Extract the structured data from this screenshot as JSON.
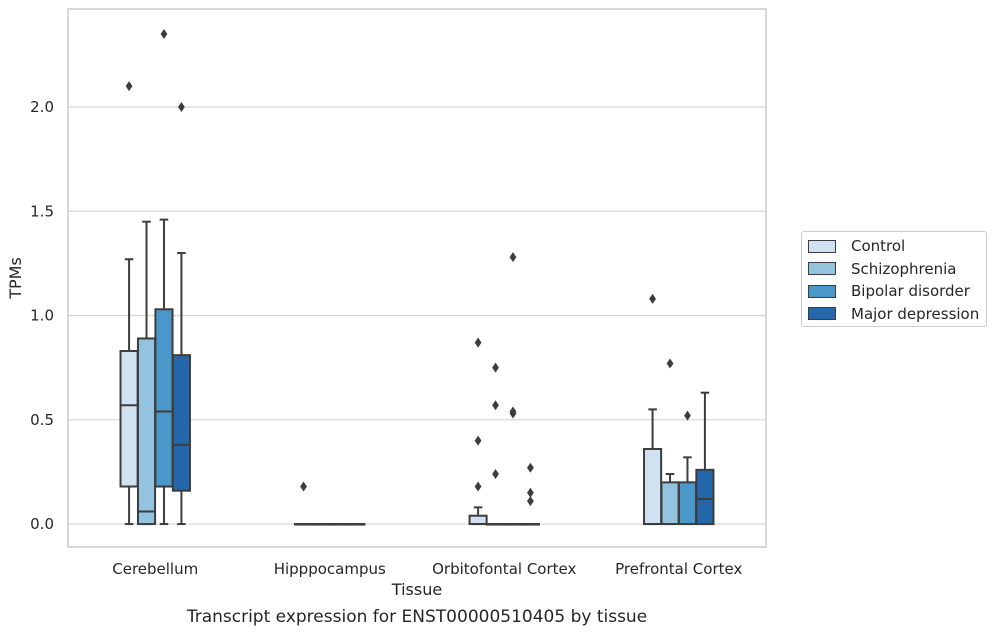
{
  "chart_data": {
    "type": "boxplot",
    "caption": "Transcript expression for ENST00000510405 by tissue",
    "xlabel": "Tissue",
    "ylabel": "TPMs",
    "ylim": [
      -0.11,
      2.47
    ],
    "yticks": [
      "0.0",
      "0.5",
      "1.0",
      "1.5",
      "2.0"
    ],
    "grid": "horizontal",
    "legend_position": "right",
    "categories": [
      "Cerebellum",
      "Hipppocampus",
      "Orbitofontal Cortex",
      "Prefrontal Cortex"
    ],
    "colors": [
      "#d0e1f1",
      "#93c3df",
      "#4a98c9",
      "#2467aa"
    ],
    "series": [
      {
        "name": "Control",
        "boxes": [
          {
            "whislo": 0.0,
            "q1": 0.18,
            "med": 0.57,
            "q3": 0.83,
            "whishi": 1.27,
            "fliers": [
              2.1
            ]
          },
          {
            "whislo": 0.0,
            "q1": 0.0,
            "med": 0.0,
            "q3": 0.0,
            "whishi": 0.0,
            "fliers": [
              0.18
            ]
          },
          {
            "whislo": 0.0,
            "q1": 0.0,
            "med": 0.0,
            "q3": 0.04,
            "whishi": 0.08,
            "fliers": [
              0.18,
              0.4,
              0.87
            ]
          },
          {
            "whislo": 0.0,
            "q1": 0.0,
            "med": 0.0,
            "q3": 0.36,
            "whishi": 0.55,
            "fliers": [
              1.08
            ]
          }
        ]
      },
      {
        "name": "Schizophrenia",
        "boxes": [
          {
            "whislo": 0.0,
            "q1": 0.0,
            "med": 0.06,
            "q3": 0.89,
            "whishi": 1.45,
            "fliers": []
          },
          {
            "whislo": 0.0,
            "q1": 0.0,
            "med": 0.0,
            "q3": 0.0,
            "whishi": 0.0,
            "fliers": []
          },
          {
            "whislo": 0.0,
            "q1": 0.0,
            "med": 0.0,
            "q3": 0.0,
            "whishi": 0.0,
            "fliers": [
              0.24,
              0.57,
              0.75
            ]
          },
          {
            "whislo": 0.0,
            "q1": 0.0,
            "med": 0.0,
            "q3": 0.2,
            "whishi": 0.24,
            "fliers": [
              0.77
            ]
          }
        ]
      },
      {
        "name": "Bipolar disorder",
        "boxes": [
          {
            "whislo": 0.0,
            "q1": 0.18,
            "med": 0.54,
            "q3": 1.03,
            "whishi": 1.46,
            "fliers": [
              2.35
            ]
          },
          {
            "whislo": 0.0,
            "q1": 0.0,
            "med": 0.0,
            "q3": 0.0,
            "whishi": 0.0,
            "fliers": []
          },
          {
            "whislo": 0.0,
            "q1": 0.0,
            "med": 0.0,
            "q3": 0.0,
            "whishi": 0.0,
            "fliers": [
              0.53,
              0.54,
              1.28
            ]
          },
          {
            "whislo": 0.0,
            "q1": 0.0,
            "med": 0.0,
            "q3": 0.2,
            "whishi": 0.32,
            "fliers": [
              0.52
            ]
          }
        ]
      },
      {
        "name": "Major depression",
        "boxes": [
          {
            "whislo": 0.0,
            "q1": 0.16,
            "med": 0.38,
            "q3": 0.81,
            "whishi": 1.3,
            "fliers": [
              2.0
            ]
          },
          {
            "whislo": 0.0,
            "q1": 0.0,
            "med": 0.0,
            "q3": 0.0,
            "whishi": 0.0,
            "fliers": []
          },
          {
            "whislo": 0.0,
            "q1": 0.0,
            "med": 0.0,
            "q3": 0.0,
            "whishi": 0.0,
            "fliers": [
              0.11,
              0.15,
              0.27
            ]
          },
          {
            "whislo": 0.0,
            "q1": 0.0,
            "med": 0.12,
            "q3": 0.26,
            "whishi": 0.63,
            "fliers": []
          }
        ]
      }
    ]
  }
}
